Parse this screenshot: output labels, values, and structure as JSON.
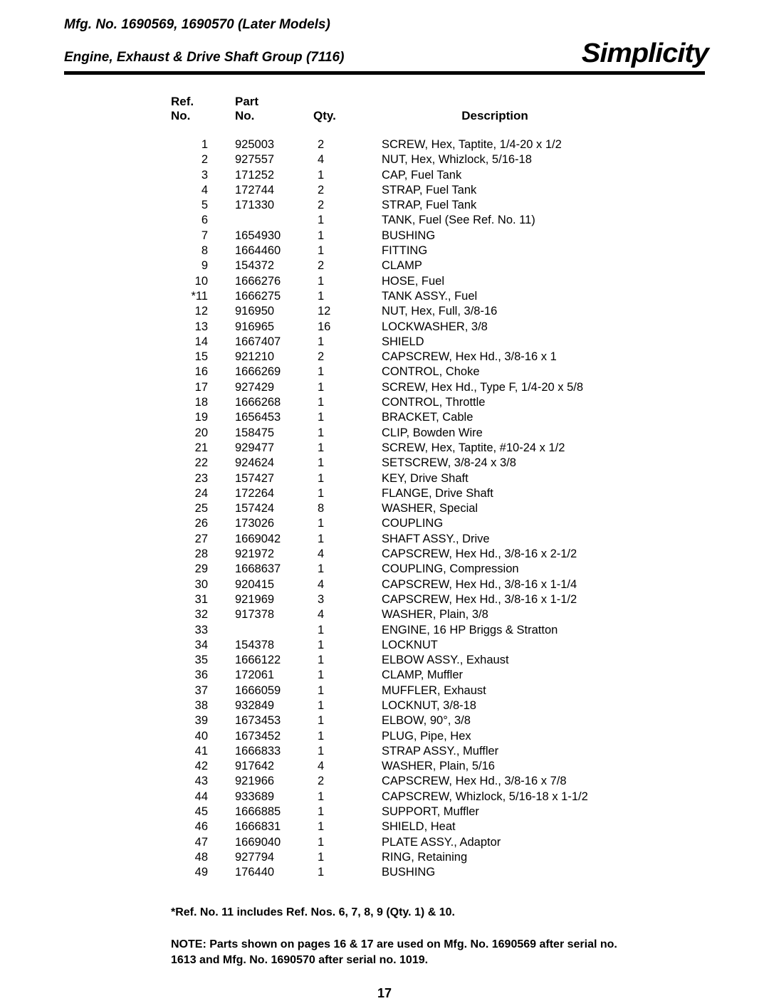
{
  "header": {
    "line1": "Mfg. No. 1690569, 1690570 (Later Models)",
    "line2": "Engine, Exhaust & Drive Shaft Group (7116)",
    "brand": "Simplicity"
  },
  "table": {
    "headers": {
      "ref1": "Ref.",
      "ref2": "No.",
      "part1": "Part",
      "part2": "No.",
      "qty": "Qty.",
      "desc": "Description"
    },
    "rows": [
      {
        "ref": "1",
        "part": "925003",
        "qty": "2",
        "desc": "SCREW, Hex, Taptite, 1/4-20 x 1/2"
      },
      {
        "ref": "2",
        "part": "927557",
        "qty": "4",
        "desc": "NUT, Hex, Whizlock, 5/16-18"
      },
      {
        "ref": "3",
        "part": "171252",
        "qty": "1",
        "desc": "CAP, Fuel Tank"
      },
      {
        "ref": "4",
        "part": "172744",
        "qty": "2",
        "desc": "STRAP, Fuel Tank"
      },
      {
        "ref": "5",
        "part": "171330",
        "qty": "2",
        "desc": "STRAP, Fuel Tank"
      },
      {
        "ref": "6",
        "part": "",
        "qty": "1",
        "desc": "TANK, Fuel (See Ref. No. 11)"
      },
      {
        "ref": "7",
        "part": "1654930",
        "qty": "1",
        "desc": "BUSHING"
      },
      {
        "ref": "8",
        "part": "1664460",
        "qty": "1",
        "desc": "FITTING"
      },
      {
        "ref": "9",
        "part": "154372",
        "qty": "2",
        "desc": "CLAMP"
      },
      {
        "ref": "10",
        "part": "1666276",
        "qty": "1",
        "desc": "HOSE, Fuel"
      },
      {
        "ref": "*11",
        "part": "1666275",
        "qty": "1",
        "desc": "TANK ASSY., Fuel"
      },
      {
        "ref": "12",
        "part": "916950",
        "qty": "12",
        "desc": "NUT, Hex, Full, 3/8-16"
      },
      {
        "ref": "13",
        "part": "916965",
        "qty": "16",
        "desc": "LOCKWASHER, 3/8"
      },
      {
        "ref": "14",
        "part": "1667407",
        "qty": "1",
        "desc": "SHIELD"
      },
      {
        "ref": "15",
        "part": "921210",
        "qty": "2",
        "desc": "CAPSCREW, Hex Hd., 3/8-16 x 1"
      },
      {
        "ref": "16",
        "part": "1666269",
        "qty": "1",
        "desc": "CONTROL, Choke"
      },
      {
        "ref": "17",
        "part": "927429",
        "qty": "1",
        "desc": "SCREW, Hex Hd., Type F, 1/4-20 x 5/8"
      },
      {
        "ref": "18",
        "part": "1666268",
        "qty": "1",
        "desc": "CONTROL, Throttle"
      },
      {
        "ref": "19",
        "part": "1656453",
        "qty": "1",
        "desc": "BRACKET, Cable"
      },
      {
        "ref": "20",
        "part": "158475",
        "qty": "1",
        "desc": "CLIP, Bowden Wire"
      },
      {
        "ref": "21",
        "part": "929477",
        "qty": "1",
        "desc": "SCREW, Hex, Taptite, #10-24 x 1/2"
      },
      {
        "ref": "22",
        "part": "924624",
        "qty": "1",
        "desc": "SETSCREW, 3/8-24 x 3/8"
      },
      {
        "ref": "23",
        "part": "157427",
        "qty": "1",
        "desc": "KEY, Drive Shaft"
      },
      {
        "ref": "24",
        "part": "172264",
        "qty": "1",
        "desc": "FLANGE, Drive Shaft"
      },
      {
        "ref": "25",
        "part": "157424",
        "qty": "8",
        "desc": "WASHER, Special"
      },
      {
        "ref": "26",
        "part": "173026",
        "qty": "1",
        "desc": "COUPLING"
      },
      {
        "ref": "27",
        "part": "1669042",
        "qty": "1",
        "desc": "SHAFT ASSY., Drive"
      },
      {
        "ref": "28",
        "part": "921972",
        "qty": "4",
        "desc": "CAPSCREW, Hex Hd., 3/8-16 x 2-1/2"
      },
      {
        "ref": "29",
        "part": "1668637",
        "qty": "1",
        "desc": "COUPLING, Compression"
      },
      {
        "ref": "30",
        "part": "920415",
        "qty": "4",
        "desc": "CAPSCREW, Hex Hd., 3/8-16 x 1-1/4"
      },
      {
        "ref": "31",
        "part": "921969",
        "qty": "3",
        "desc": "CAPSCREW, Hex Hd., 3/8-16 x 1-1/2"
      },
      {
        "ref": "32",
        "part": "917378",
        "qty": "4",
        "desc": "WASHER, Plain, 3/8"
      },
      {
        "ref": "33",
        "part": "",
        "qty": "1",
        "desc": "ENGINE, 16 HP Briggs & Stratton"
      },
      {
        "ref": "34",
        "part": "154378",
        "qty": "1",
        "desc": "LOCKNUT"
      },
      {
        "ref": "35",
        "part": "1666122",
        "qty": "1",
        "desc": "ELBOW ASSY., Exhaust"
      },
      {
        "ref": "36",
        "part": "172061",
        "qty": "1",
        "desc": "CLAMP, Muffler"
      },
      {
        "ref": "37",
        "part": "1666059",
        "qty": "1",
        "desc": "MUFFLER, Exhaust"
      },
      {
        "ref": "38",
        "part": "932849",
        "qty": "1",
        "desc": "LOCKNUT, 3/8-18"
      },
      {
        "ref": "39",
        "part": "1673453",
        "qty": "1",
        "desc": "ELBOW, 90°, 3/8"
      },
      {
        "ref": "40",
        "part": "1673452",
        "qty": "1",
        "desc": "PLUG, Pipe, Hex"
      },
      {
        "ref": "41",
        "part": "1666833",
        "qty": "1",
        "desc": "STRAP ASSY., Muffler"
      },
      {
        "ref": "42",
        "part": "917642",
        "qty": "4",
        "desc": "WASHER, Plain, 5/16"
      },
      {
        "ref": "43",
        "part": "921966",
        "qty": "2",
        "desc": "CAPSCREW, Hex Hd., 3/8-16 x 7/8"
      },
      {
        "ref": "44",
        "part": "933689",
        "qty": "1",
        "desc": "CAPSCREW, Whizlock, 5/16-18 x 1-1/2"
      },
      {
        "ref": "45",
        "part": "1666885",
        "qty": "1",
        "desc": "SUPPORT, Muffler"
      },
      {
        "ref": "46",
        "part": "1666831",
        "qty": "1",
        "desc": "SHIELD, Heat"
      },
      {
        "ref": "47",
        "part": "1669040",
        "qty": "1",
        "desc": "PLATE ASSY., Adaptor"
      },
      {
        "ref": "48",
        "part": "927794",
        "qty": "1",
        "desc": "RING, Retaining"
      },
      {
        "ref": "49",
        "part": "176440",
        "qty": "1",
        "desc": "BUSHING"
      }
    ]
  },
  "footnote": "*Ref. No. 11 includes Ref. Nos. 6, 7, 8, 9 (Qty. 1) & 10.",
  "note_lead": "NOTE:",
  "note_body": " Parts shown on pages 16 & 17 are used on Mfg. No. 1690569 after serial no. 1613 and Mfg. No. 1690570 after serial no. 1019.",
  "page_number": "17"
}
